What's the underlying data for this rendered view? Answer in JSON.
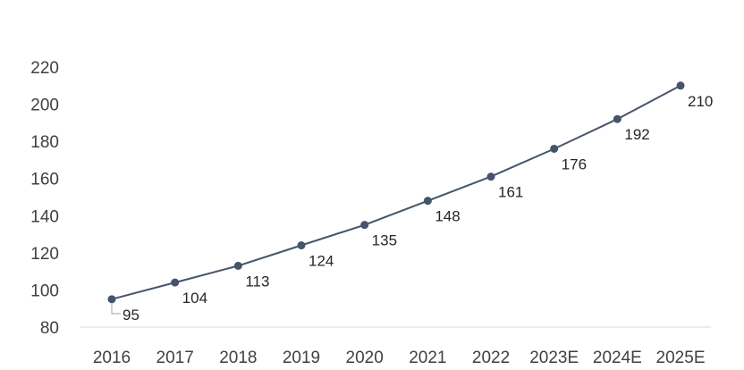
{
  "chart_data": {
    "type": "line",
    "categories": [
      "2016",
      "2017",
      "2018",
      "2019",
      "2020",
      "2021",
      "2022",
      "2023E",
      "2024E",
      "2025E"
    ],
    "series": [
      {
        "values": [
          95,
          104,
          113,
          124,
          135,
          148,
          161,
          176,
          192,
          210
        ]
      }
    ],
    "data_labels": [
      "95",
      "104",
      "113",
      "124",
      "135",
      "148",
      "161",
      "176",
      "192",
      "210"
    ],
    "y_ticks": [
      "80",
      "100",
      "120",
      "140",
      "160",
      "180",
      "200",
      "220"
    ],
    "ylim": [
      80,
      220
    ],
    "grid": false,
    "legend": "none",
    "colors": {
      "line": "#44546a",
      "marker": "#44546a",
      "axis": "#d9d9d9",
      "text": "#404040"
    }
  }
}
